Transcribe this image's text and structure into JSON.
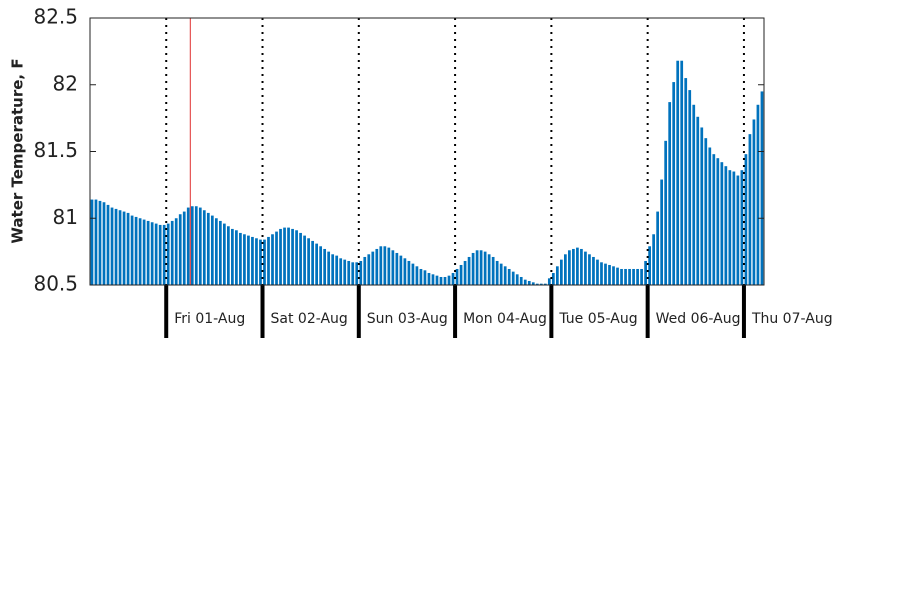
{
  "chart_data": {
    "type": "bar",
    "ylabel": "Water Temperature, F",
    "color": "#0072bd",
    "ylim": [
      80.5,
      82.5
    ],
    "yticks": [
      80.5,
      81,
      81.5,
      82,
      82.5
    ],
    "categories": [
      null,
      null,
      null,
      null,
      null,
      null,
      null,
      null,
      null,
      null,
      null,
      null,
      null,
      null,
      null,
      null,
      null,
      null,
      null,
      "Fri 01-Aug",
      null,
      null,
      null,
      null,
      null,
      null,
      null,
      null,
      null,
      null,
      null,
      null,
      null,
      null,
      null,
      null,
      null,
      null,
      null,
      null,
      null,
      null,
      null,
      "Sat 02-Aug",
      null,
      null,
      null,
      null,
      null,
      null,
      null,
      null,
      null,
      null,
      null,
      null,
      null,
      null,
      null,
      null,
      null,
      null,
      null,
      null,
      null,
      null,
      null,
      "Sun 03-Aug",
      null,
      null,
      null,
      null,
      null,
      null,
      null,
      null,
      null,
      null,
      null,
      null,
      null,
      null,
      null,
      null,
      null,
      null,
      null,
      null,
      null,
      null,
      null,
      "Mon 04-Aug",
      null,
      null,
      null,
      null,
      null,
      null,
      null,
      null,
      null,
      null,
      null,
      null,
      null,
      null,
      null,
      null,
      null,
      null,
      null,
      null,
      null,
      null,
      null,
      "Tue 05-Aug",
      null,
      null,
      null,
      null,
      null,
      null,
      null,
      null,
      null,
      null,
      null,
      null,
      null,
      null,
      null,
      null,
      null,
      null,
      null,
      null,
      null,
      null,
      null,
      "Wed 06-Aug",
      null,
      null,
      null,
      null,
      null,
      null,
      null,
      null,
      null,
      null,
      null,
      null,
      null,
      null,
      null,
      null,
      null,
      null,
      null,
      null,
      null,
      null,
      null,
      "Thu 07-Aug",
      null,
      null,
      null,
      null
    ],
    "values": [
      81.14,
      81.14,
      81.13,
      81.12,
      81.1,
      81.08,
      81.07,
      81.06,
      81.05,
      81.04,
      81.02,
      81.01,
      81.0,
      80.99,
      80.98,
      80.97,
      80.96,
      80.95,
      80.95,
      80.96,
      80.98,
      81.0,
      81.03,
      81.05,
      81.08,
      81.09,
      81.09,
      81.08,
      81.06,
      81.04,
      81.02,
      81.0,
      80.98,
      80.96,
      80.94,
      80.92,
      80.91,
      80.89,
      80.88,
      80.87,
      80.86,
      80.85,
      80.84,
      80.84,
      80.86,
      80.88,
      80.9,
      80.92,
      80.93,
      80.93,
      80.92,
      80.91,
      80.89,
      80.87,
      80.85,
      80.83,
      80.81,
      80.79,
      80.77,
      80.75,
      80.73,
      80.72,
      80.7,
      80.69,
      80.68,
      80.67,
      80.67,
      80.68,
      80.71,
      80.73,
      80.75,
      80.77,
      80.79,
      80.79,
      80.78,
      80.76,
      80.74,
      80.72,
      80.7,
      80.68,
      80.66,
      80.64,
      80.62,
      80.61,
      80.59,
      80.58,
      80.57,
      80.56,
      80.56,
      80.57,
      80.59,
      80.62,
      80.65,
      80.68,
      80.71,
      80.74,
      80.76,
      80.76,
      80.75,
      80.73,
      80.71,
      80.68,
      80.66,
      80.64,
      80.62,
      80.6,
      80.58,
      80.56,
      80.54,
      80.53,
      80.52,
      80.51,
      80.51,
      80.51,
      80.55,
      80.59,
      80.64,
      80.69,
      80.73,
      80.76,
      80.77,
      80.78,
      80.77,
      80.75,
      80.73,
      80.71,
      80.69,
      80.67,
      80.66,
      80.65,
      80.64,
      80.63,
      80.62,
      80.62,
      80.62,
      80.62,
      80.62,
      80.62,
      80.68,
      80.79,
      80.88,
      81.05,
      81.29,
      81.58,
      81.87,
      82.02,
      82.18,
      82.18,
      82.05,
      81.96,
      81.85,
      81.76,
      81.68,
      81.6,
      81.53,
      81.48,
      81.45,
      81.42,
      81.39,
      81.36,
      81.35,
      81.32,
      81.36,
      81.48,
      81.63,
      81.74,
      81.85,
      81.95
    ]
  }
}
